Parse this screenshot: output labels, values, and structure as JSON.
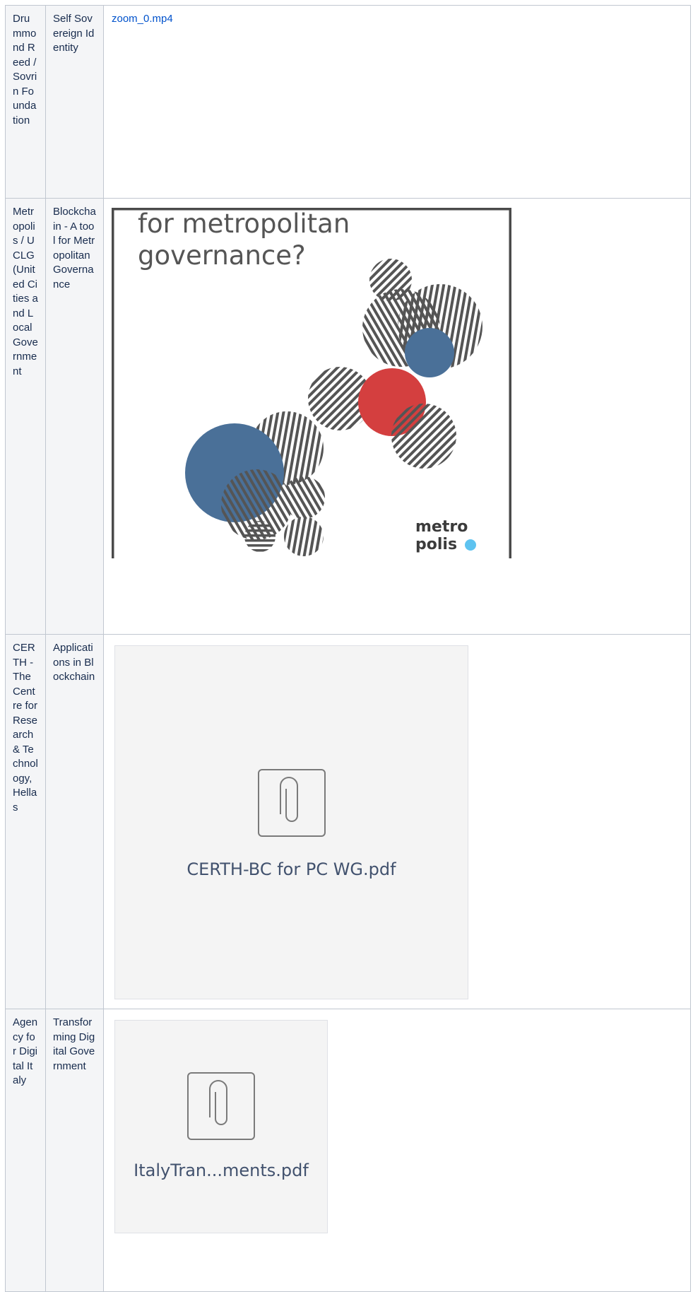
{
  "table": {
    "rows": [
      {
        "organization": "Drummond Reed / Sovrin Foundation",
        "topic": "Self Sovereign Identity",
        "link": "zoom_0.mp4"
      },
      {
        "organization": "Metropolis / UCLG (United Cities and Local Government",
        "topic": "Blockchain - A tool for Metropolitan Governance",
        "image_text": [
          "for metropolitan",
          "governance?"
        ],
        "image_logo": [
          "metro",
          "polis"
        ]
      },
      {
        "organization": "CERTH - The Centre for Research & Technology, Hellas",
        "topic": "Applications in Blockchain",
        "file": "CERTH-BC for PC WG.pdf"
      },
      {
        "organization": "Agency for Digital Italy",
        "topic": "Transforming Digital Government",
        "file": "ItalyTran...ments.pdf"
      }
    ]
  }
}
